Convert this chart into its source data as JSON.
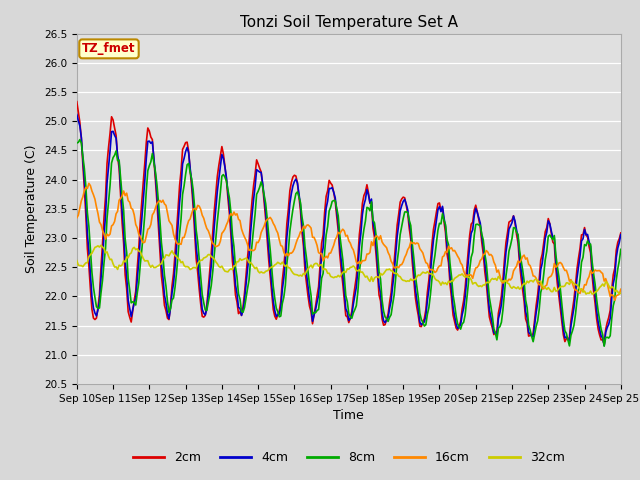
{
  "title": "Tonzi Soil Temperature Set A",
  "xlabel": "Time",
  "ylabel": "Soil Temperature (C)",
  "annotation": "TZ_fmet",
  "annotation_color": "#cc0000",
  "annotation_bg": "#ffffcc",
  "annotation_border": "#bb8800",
  "ylim": [
    20.5,
    26.5
  ],
  "yticks": [
    20.5,
    21.0,
    21.5,
    22.0,
    22.5,
    23.0,
    23.5,
    24.0,
    24.5,
    25.0,
    25.5,
    26.0,
    26.5
  ],
  "xtick_labels": [
    "Sep 10",
    "Sep 11",
    "Sep 12",
    "Sep 13",
    "Sep 14",
    "Sep 15",
    "Sep 16",
    "Sep 17",
    "Sep 18",
    "Sep 19",
    "Sep 20",
    "Sep 21",
    "Sep 22",
    "Sep 23",
    "Sep 24",
    "Sep 25"
  ],
  "series_colors": [
    "#dd0000",
    "#0000cc",
    "#00aa00",
    "#ff8800",
    "#cccc00"
  ],
  "series_labels": [
    "2cm",
    "4cm",
    "8cm",
    "16cm",
    "32cm"
  ],
  "fig_bg_color": "#d8d8d8",
  "plot_bg_color": "#e0e0e0",
  "grid_color": "#ffffff",
  "line_width": 1.2
}
